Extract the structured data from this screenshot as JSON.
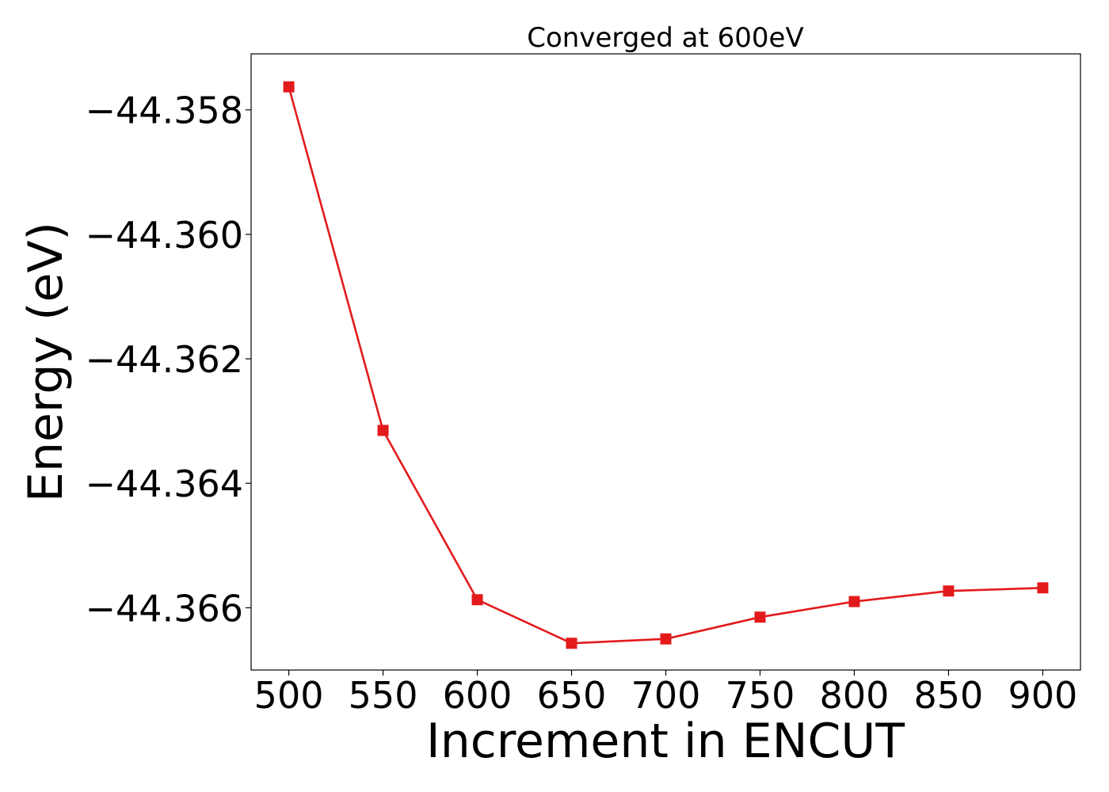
{
  "chart_data": {
    "type": "line",
    "title": "Converged at 600eV",
    "xlabel": "Increment in ENCUT",
    "ylabel": "Energy (eV)",
    "x": [
      500,
      550,
      600,
      650,
      700,
      750,
      800,
      850,
      900
    ],
    "series": [
      {
        "values": [
          -44.35763,
          -44.36315,
          -44.36587,
          -44.36657,
          -44.3665,
          -44.36615,
          -44.3659,
          -44.36573,
          -44.36568
        ],
        "color": "#e31a1c",
        "marker": "square"
      }
    ],
    "xlim": [
      480,
      920
    ],
    "ylim": [
      -44.367,
      -44.3571
    ],
    "xticks": [
      500,
      550,
      600,
      650,
      700,
      750,
      800,
      850,
      900
    ],
    "xtick_labels": [
      "500",
      "550",
      "600",
      "650",
      "700",
      "750",
      "800",
      "850",
      "900"
    ],
    "yticks": [
      -44.358,
      -44.36,
      -44.362,
      -44.364,
      -44.366
    ],
    "ytick_labels": [
      "−44.358",
      "−44.360",
      "−44.362",
      "−44.364",
      "−44.366"
    ],
    "grid": false,
    "legend": "none"
  }
}
